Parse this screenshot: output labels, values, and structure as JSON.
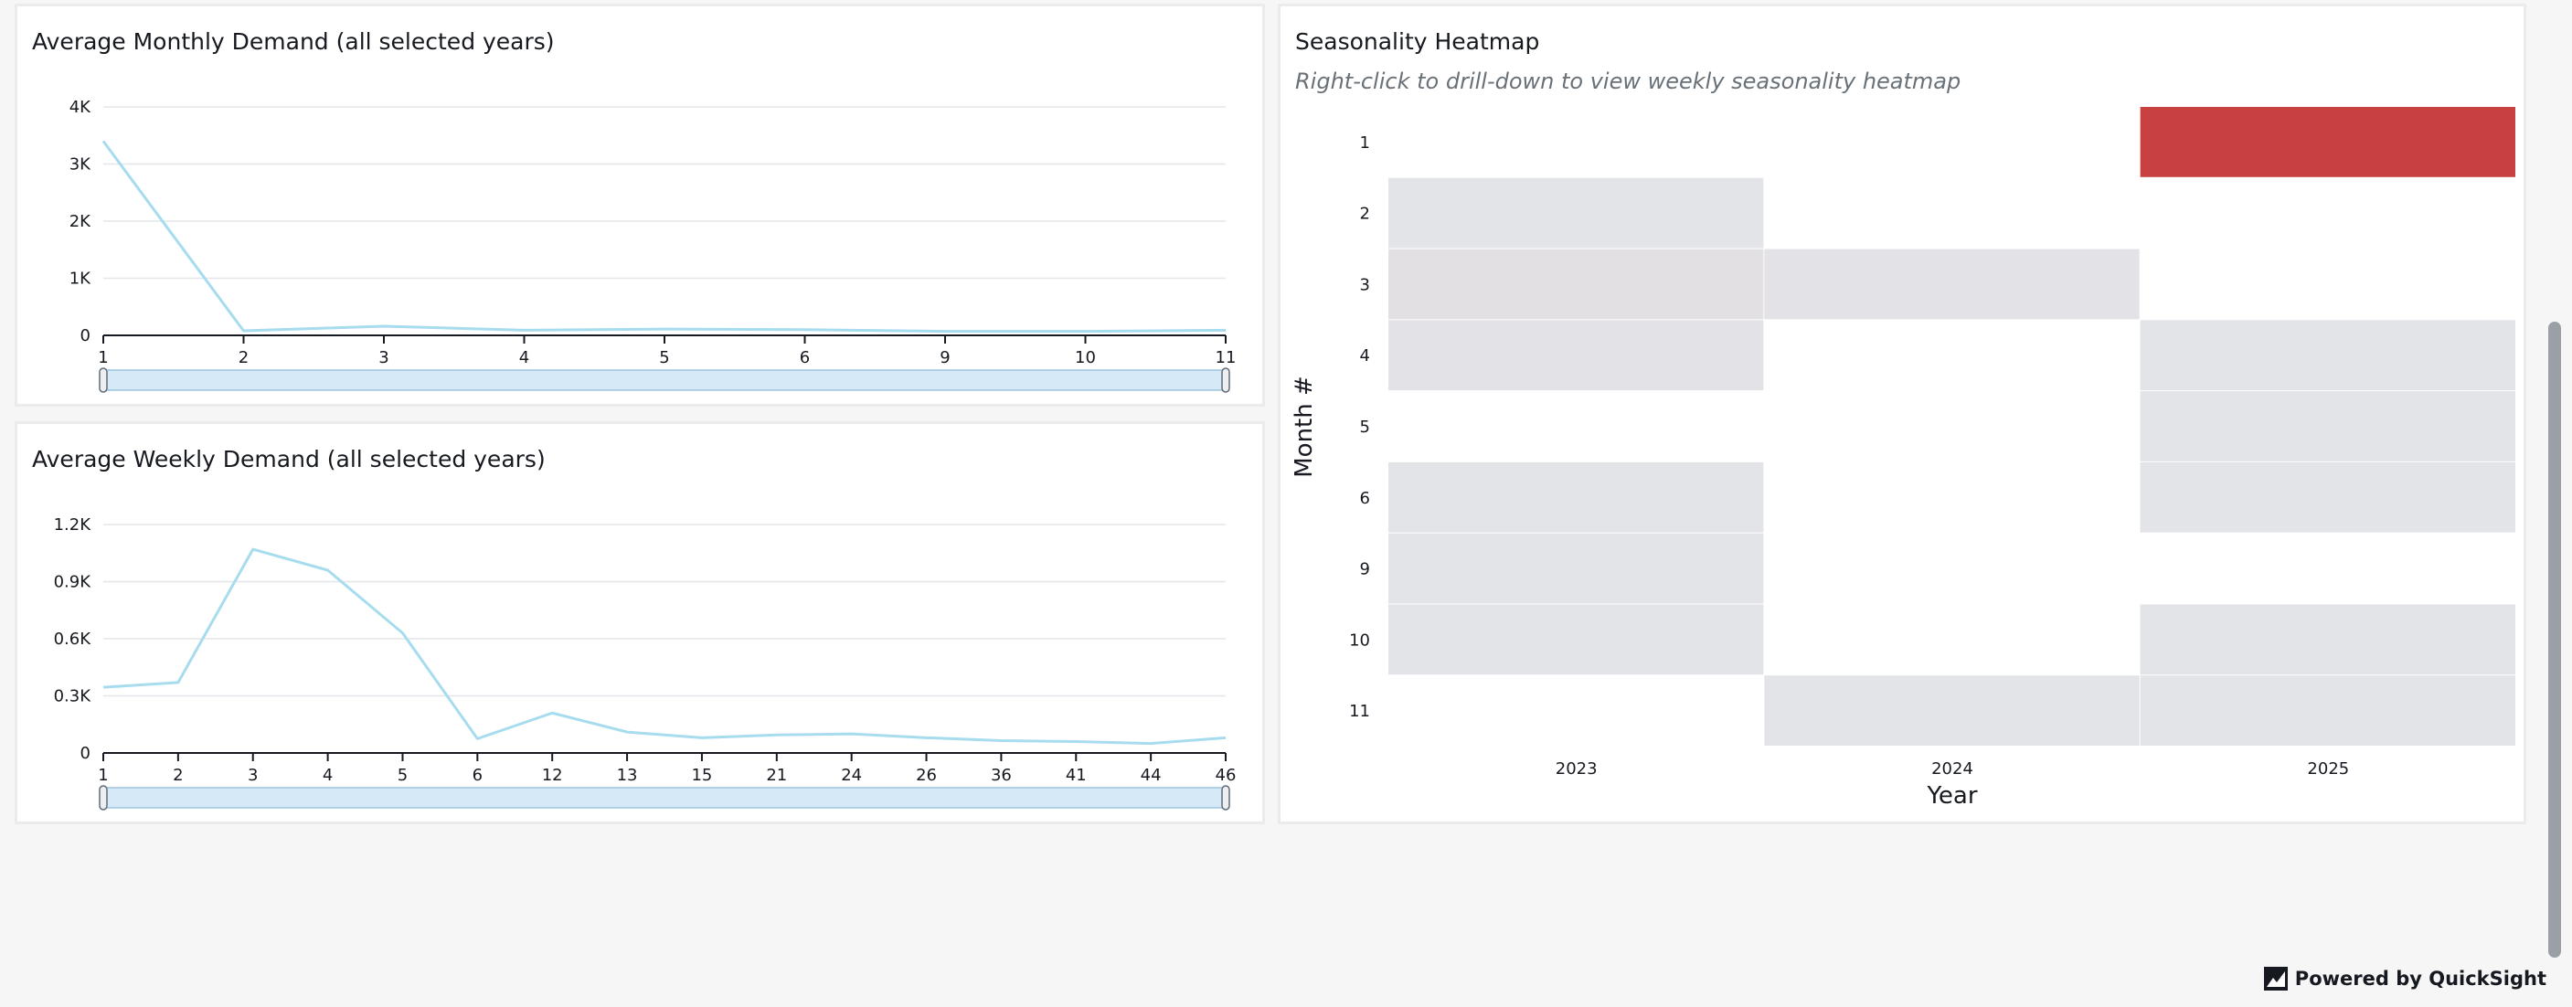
{
  "footer": {
    "brand": "Powered by QuickSight",
    "icon": "quicksight-logo-icon"
  },
  "colors": {
    "line": "#a6dcee",
    "grid": "#e4e6e9",
    "axis": "#16191f",
    "range_fill": "#d6e9f6",
    "range_border": "#9ec5de",
    "heat_low": "#e4e7eb",
    "heat_high": "#c94040"
  },
  "chart_data": [
    {
      "type": "line",
      "title": "Average Monthly Demand (all selected years)",
      "categories": [
        "1",
        "2",
        "3",
        "4",
        "5",
        "6",
        "9",
        "10",
        "11"
      ],
      "values": [
        3400,
        80,
        160,
        90,
        110,
        100,
        70,
        70,
        90
      ],
      "yticks": [
        "0",
        "1K",
        "2K",
        "3K",
        "4K"
      ],
      "ytick_values": [
        0,
        1000,
        2000,
        3000,
        4000
      ],
      "ylim": [
        0,
        4000
      ],
      "grid": true
    },
    {
      "type": "line",
      "title": "Average Weekly Demand (all selected years)",
      "categories": [
        "1",
        "2",
        "3",
        "4",
        "5",
        "6",
        "12",
        "13",
        "15",
        "21",
        "24",
        "26",
        "36",
        "41",
        "44",
        "46"
      ],
      "values": [
        345,
        370,
        1070,
        960,
        630,
        75,
        210,
        110,
        80,
        95,
        100,
        80,
        65,
        60,
        50,
        80
      ],
      "yticks": [
        "0",
        "0.3K",
        "0.6K",
        "0.9K",
        "1.2K"
      ],
      "ytick_values": [
        0,
        300,
        600,
        900,
        1200
      ],
      "ylim": [
        0,
        1200
      ],
      "grid": true
    },
    {
      "type": "heatmap",
      "title": "Seasonality Heatmap",
      "subtitle": "Right-click to drill-down to view weekly seasonality heatmap",
      "xlabel": "Year",
      "ylabel": "Month #",
      "x": [
        "2023",
        "2024",
        "2025"
      ],
      "y": [
        "1",
        "2",
        "3",
        "4",
        "5",
        "6",
        "9",
        "10",
        "11"
      ],
      "values": [
        [
          null,
          null,
          1.0
        ],
        [
          0.02,
          null,
          null
        ],
        [
          0.04,
          0.03,
          null
        ],
        [
          0.03,
          null,
          0.02
        ],
        [
          null,
          null,
          0.02
        ],
        [
          0.02,
          null,
          0.02
        ],
        [
          0.02,
          null,
          null
        ],
        [
          0.02,
          null,
          0.02
        ],
        [
          null,
          0.02,
          0.02
        ]
      ]
    }
  ]
}
